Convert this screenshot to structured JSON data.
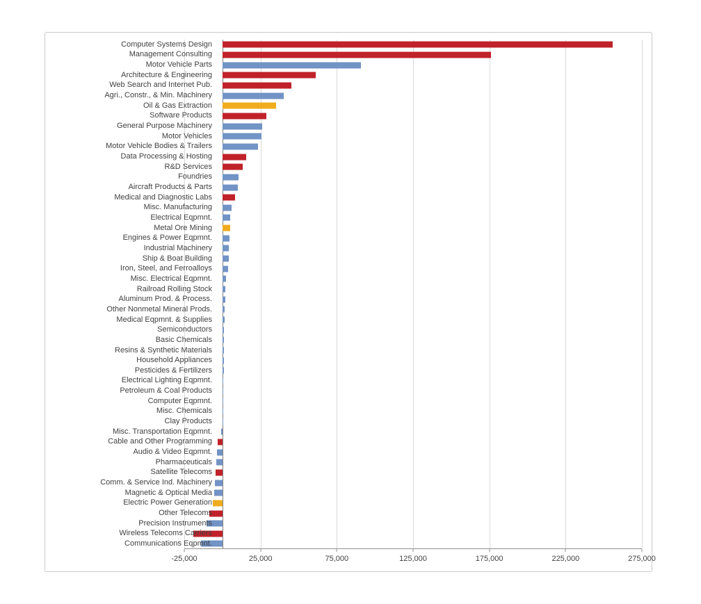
{
  "chart_data": {
    "type": "bar",
    "orientation": "horizontal",
    "title": "",
    "xlabel": "",
    "ylabel": "",
    "xlim": [
      -25000,
      275000
    ],
    "x_ticks": [
      -25000,
      25000,
      75000,
      125000,
      175000,
      225000,
      275000
    ],
    "x_tick_labels": [
      "-25,000",
      "25,000",
      "75,000",
      "125,000",
      "175,000",
      "225,000",
      "275,000"
    ],
    "grid": "vertical-gridlines-at-labeled-ticks",
    "legend": "none",
    "palette": {
      "red": "#c0222a",
      "blue": "#7193c5",
      "yellow": "#f0ac1e"
    },
    "categories": [
      "Computer Systems Design",
      "Management Consulting",
      "Motor Vehicle Parts",
      "Architecture & Engineering",
      "Web Search and Internet Pub.",
      "Agri., Constr., & Min. Machinery",
      "Oil & Gas Extraction",
      "Software Products",
      "General Purpose Machinery",
      "Motor Vehicles",
      "Motor Vehicle Bodies & Trailers",
      "Data Processing & Hosting",
      "R&D Services",
      "Foundries",
      "Aircraft Products & Parts",
      "Medical and Diagnostic Labs",
      "Misc. Manufacturing",
      "Electrical Eqpmnt.",
      "Metal Ore Mining",
      "Engines & Power Eqpmnt.",
      "Industrial Machinery",
      "Ship & Boat Building",
      "Iron, Steel, and Ferroalloys",
      "Misc. Electrical Eqpmnt.",
      "Railroad Rolling Stock",
      "Aluminum Prod. & Process.",
      "Other Nonmetal Mineral Prods.",
      "Medical Eqpmnt. & Supplies",
      "Semiconductors",
      "Basic Chemicals",
      "Resins & Synthetic Materials",
      "Household Appliances",
      "Pesticides & Fertilizers",
      "Electrical Lighting Eqpmnt.",
      "Petroleum & Coal Products",
      "Computer Eqpmnt.",
      "Misc. Chemicals",
      "Clay Products",
      "Misc. Transportation Eqpmnt.",
      "Cable and Other Programming",
      "Audio & Video Eqpmnt.",
      "Pharmaceuticals",
      "Satellite Telecoms",
      "Comm. & Service Ind. Machinery",
      "Magnetic & Optical Media",
      "Electric Power Generation",
      "Other Telecoms",
      "Precision Instruments",
      "Wireless Telecoms Carriers",
      "Communications Eqpmnt."
    ],
    "values": [
      256000,
      176000,
      91000,
      61000,
      45000,
      40000,
      35000,
      29000,
      26000,
      25500,
      23500,
      15500,
      13500,
      10500,
      10000,
      8500,
      6000,
      5000,
      5000,
      4500,
      4000,
      4000,
      3500,
      2500,
      2000,
      2000,
      1500,
      1500,
      1200,
      1200,
      1000,
      900,
      800,
      700,
      600,
      500,
      400,
      300,
      -700,
      -3000,
      -3500,
      -4000,
      -4500,
      -5000,
      -5500,
      -6500,
      -8500,
      -10500,
      -19000,
      -14000
    ],
    "bar_colors": [
      "red",
      "red",
      "blue",
      "red",
      "red",
      "blue",
      "yellow",
      "red",
      "blue",
      "blue",
      "blue",
      "red",
      "red",
      "blue",
      "blue",
      "red",
      "blue",
      "blue",
      "yellow",
      "blue",
      "blue",
      "blue",
      "blue",
      "blue",
      "blue",
      "blue",
      "blue",
      "blue",
      "blue",
      "blue",
      "blue",
      "blue",
      "blue",
      "blue",
      "blue",
      "blue",
      "blue",
      "blue",
      "blue",
      "red",
      "blue",
      "blue",
      "red",
      "blue",
      "blue",
      "yellow",
      "red",
      "blue",
      "red",
      "blue"
    ]
  }
}
